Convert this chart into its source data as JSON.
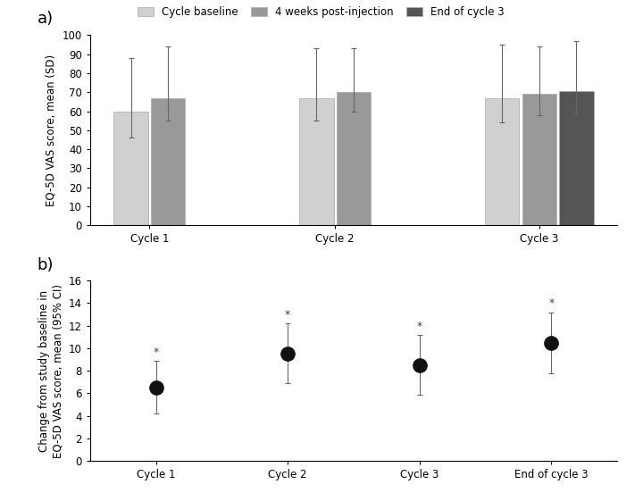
{
  "panel_a": {
    "cycles": [
      "Cycle 1",
      "Cycle 2",
      "Cycle 3"
    ],
    "bar_groups": {
      "Cycle baseline": {
        "means": [
          60,
          67,
          67
        ],
        "sd_upper": [
          88,
          93,
          95
        ],
        "sd_lower": [
          46,
          55,
          54
        ],
        "color": "#d0d0d0"
      },
      "4 weeks post-injection": {
        "means": [
          67,
          70,
          69
        ],
        "sd_upper": [
          94,
          93,
          94
        ],
        "sd_lower": [
          55,
          60,
          58
        ],
        "color": "#999999"
      },
      "End of cycle 3": {
        "means": [
          null,
          null,
          70.5
        ],
        "sd_upper": [
          null,
          null,
          97
        ],
        "sd_lower": [
          null,
          null,
          59
        ],
        "color": "#555555"
      }
    },
    "ylabel": "EQ-5D VAS score, mean (SD)",
    "ylim": [
      0,
      100
    ],
    "yticks": [
      0,
      10,
      20,
      30,
      40,
      50,
      60,
      70,
      80,
      90,
      100
    ]
  },
  "panel_b": {
    "xticklabels": [
      "Cycle 1",
      "Cycle 2",
      "Cycle 3",
      "End of cycle 3"
    ],
    "means": [
      6.5,
      9.5,
      8.5,
      10.5
    ],
    "ci_upper": [
      8.9,
      12.2,
      11.2,
      13.2
    ],
    "ci_lower": [
      4.2,
      6.9,
      5.9,
      7.8
    ],
    "marker_color": "#111111",
    "ylabel": "Change from study baseline in\nEQ-5D VAS score, mean (95% CI)",
    "ylim": [
      0,
      16
    ],
    "yticks": [
      0,
      2,
      4,
      6,
      8,
      10,
      12,
      14,
      16
    ]
  },
  "legend_labels": [
    "Cycle baseline",
    "4 weeks post-injection",
    "End of cycle 3"
  ],
  "legend_colors": [
    "#d0d0d0",
    "#999999",
    "#555555"
  ],
  "background_color": "#ffffff",
  "panel_label_fontsize": 13,
  "axis_fontsize": 8.5,
  "tick_fontsize": 8.5,
  "legend_fontsize": 8.5
}
